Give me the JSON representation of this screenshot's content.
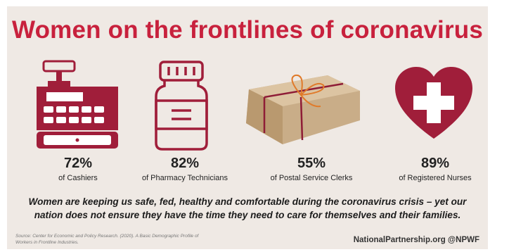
{
  "title": "Women on the frontlines of coronavirus",
  "stats": [
    {
      "percent": "72%",
      "label": "of Cashiers",
      "icon": "cash-register-icon"
    },
    {
      "percent": "82%",
      "label": "of Pharmacy Technicians",
      "icon": "pill-bottle-icon"
    },
    {
      "percent": "55%",
      "label": "of Postal Service Clerks",
      "icon": "package-icon"
    },
    {
      "percent": "89%",
      "label": "of Registered Nurses",
      "icon": "heart-cross-icon"
    }
  ],
  "message": "Women are keeping us safe, fed, healthy and comfortable during the coronavirus crisis – yet our nation does not ensure they have the time they need to care for themselves and their families.",
  "source": "Source: Center for Economic and Policy Research. (2020). A Basic Demographic Profile of Workers in Frontline Industries.",
  "credit": "NationalPartnership.org @NPWF",
  "colors": {
    "accent": "#c8213d",
    "icon": "#a01e3a",
    "background": "#efe9e4",
    "package": "#c9ad88",
    "ribbon": "#8e1c36"
  }
}
